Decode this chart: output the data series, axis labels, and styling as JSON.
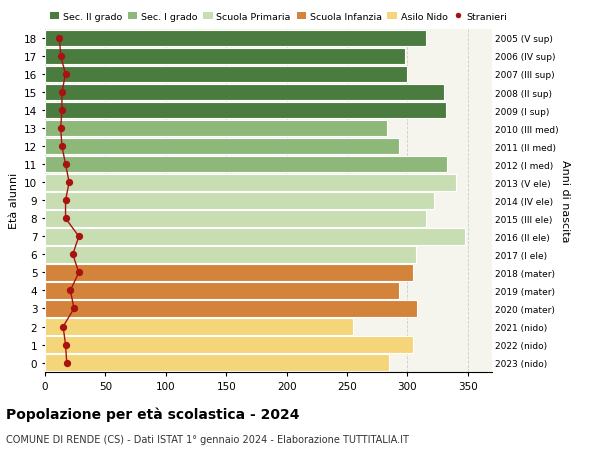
{
  "ages": [
    18,
    17,
    16,
    15,
    14,
    13,
    12,
    11,
    10,
    9,
    8,
    7,
    6,
    5,
    4,
    3,
    2,
    1,
    0
  ],
  "values": [
    315,
    298,
    300,
    330,
    332,
    283,
    293,
    333,
    340,
    322,
    315,
    348,
    307,
    305,
    293,
    308,
    255,
    305,
    285
  ],
  "stranieri": [
    12,
    13,
    17,
    14,
    14,
    13,
    14,
    17,
    20,
    17,
    17,
    28,
    23,
    28,
    21,
    24,
    15,
    17,
    18
  ],
  "right_labels": [
    "2005 (V sup)",
    "2006 (IV sup)",
    "2007 (III sup)",
    "2008 (II sup)",
    "2009 (I sup)",
    "2010 (III med)",
    "2011 (II med)",
    "2012 (I med)",
    "2013 (V ele)",
    "2014 (IV ele)",
    "2015 (III ele)",
    "2016 (II ele)",
    "2017 (I ele)",
    "2018 (mater)",
    "2019 (mater)",
    "2020 (mater)",
    "2021 (nido)",
    "2022 (nido)",
    "2023 (nido)"
  ],
  "colors": {
    "sec2": "#4a7c3f",
    "sec1": "#8db87a",
    "primaria": "#c8deb2",
    "infanzia": "#d4833a",
    "nido": "#f5d57a",
    "stranieri": "#aa1111"
  },
  "bar_colors": [
    "#4a7c3f",
    "#4a7c3f",
    "#4a7c3f",
    "#4a7c3f",
    "#4a7c3f",
    "#8db87a",
    "#8db87a",
    "#8db87a",
    "#c8deb2",
    "#c8deb2",
    "#c8deb2",
    "#c8deb2",
    "#c8deb2",
    "#d4833a",
    "#d4833a",
    "#d4833a",
    "#f5d57a",
    "#f5d57a",
    "#f5d57a"
  ],
  "legend_labels": [
    "Sec. II grado",
    "Sec. I grado",
    "Scuola Primaria",
    "Scuola Infanzia",
    "Asilo Nido",
    "Stranieri"
  ],
  "legend_colors": [
    "#4a7c3f",
    "#8db87a",
    "#c8deb2",
    "#d4833a",
    "#f5d57a",
    "#aa1111"
  ],
  "ylabel": "Età alunni",
  "right_ylabel": "Anni di nascita",
  "title": "Popolazione per età scolastica - 2024",
  "subtitle": "COMUNE DI RENDE (CS) - Dati ISTAT 1° gennaio 2024 - Elaborazione TUTTITALIA.IT",
  "xlim": [
    0,
    370
  ],
  "bg_color": "#f5f5ee",
  "grid_color": "#cccccc"
}
